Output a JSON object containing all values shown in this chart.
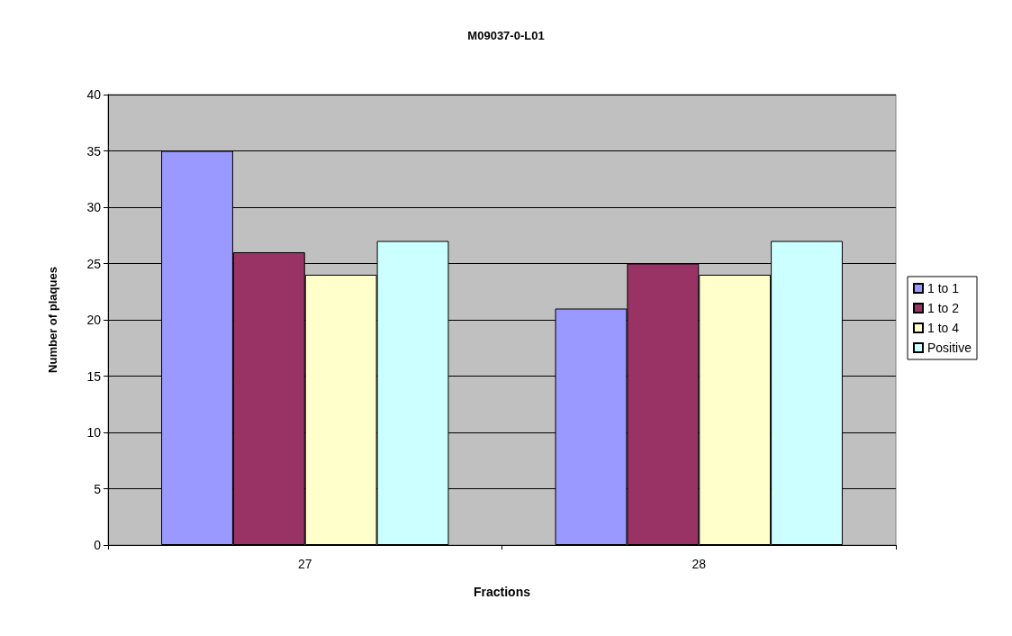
{
  "chart_data": {
    "type": "bar",
    "title": "M09037-0-L01",
    "xlabel": "Fractions",
    "ylabel": "Number of plaques",
    "categories": [
      "27",
      "28"
    ],
    "series": [
      {
        "name": "1 to 1",
        "color": "#9999ff",
        "values": [
          35,
          21
        ]
      },
      {
        "name": "1 to 2",
        "color": "#993366",
        "values": [
          26,
          25
        ]
      },
      {
        "name": "1 to 4",
        "color": "#ffffcc",
        "values": [
          24,
          24
        ]
      },
      {
        "name": "Positive",
        "color": "#ccffff",
        "values": [
          27,
          27
        ]
      }
    ],
    "ylim": [
      0,
      40
    ],
    "yticks": [
      0,
      5,
      10,
      15,
      20,
      25,
      30,
      35,
      40
    ],
    "grid": "y",
    "legend": "right"
  }
}
